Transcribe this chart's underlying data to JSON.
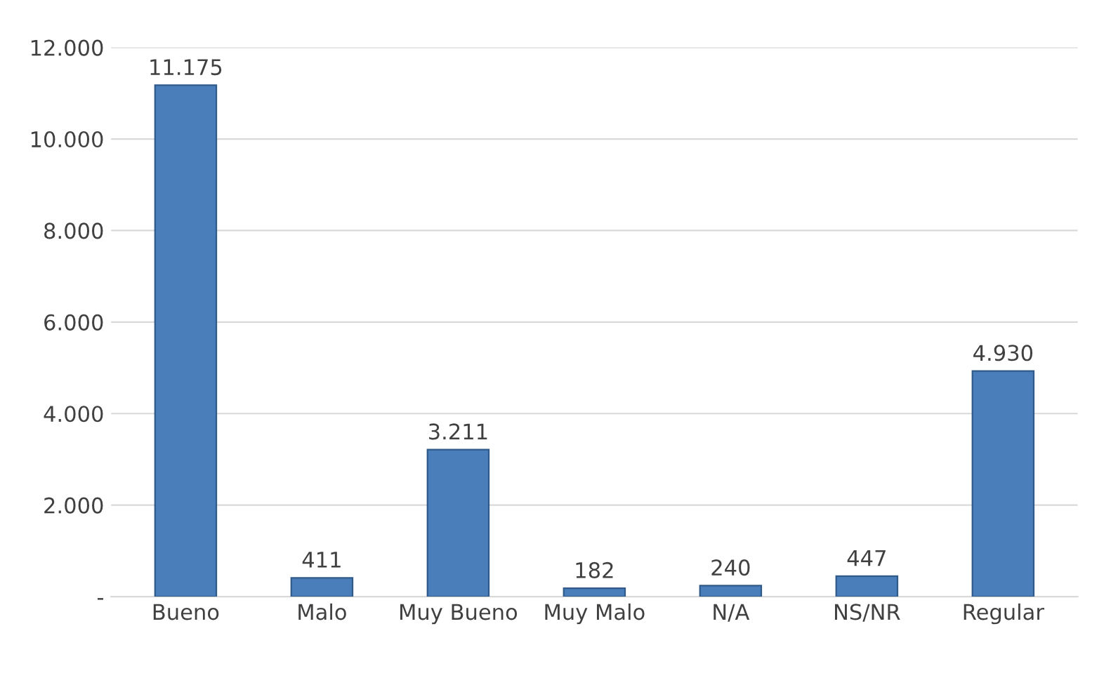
{
  "chart_data": {
    "type": "bar",
    "categories": [
      "Bueno",
      "Malo",
      "Muy Bueno",
      "Muy Malo",
      "N/A",
      "NS/NR",
      "Regular"
    ],
    "values": [
      11175,
      411,
      3211,
      182,
      240,
      447,
      4930
    ],
    "value_labels": [
      "11.175",
      "411",
      "3.211",
      "182",
      "240",
      "447",
      "4.930"
    ],
    "color": "#4a7ebb",
    "ylim": [
      0,
      12000
    ],
    "yticks": [
      {
        "value": 0,
        "label": "-"
      },
      {
        "value": 2000,
        "label": "2.000"
      },
      {
        "value": 4000,
        "label": "4.000"
      },
      {
        "value": 6000,
        "label": "6.000"
      },
      {
        "value": 8000,
        "label": "8.000"
      },
      {
        "value": 10000,
        "label": "10.000"
      },
      {
        "value": 12000,
        "label": "12.000"
      }
    ],
    "grid": "y",
    "legend": false
  }
}
